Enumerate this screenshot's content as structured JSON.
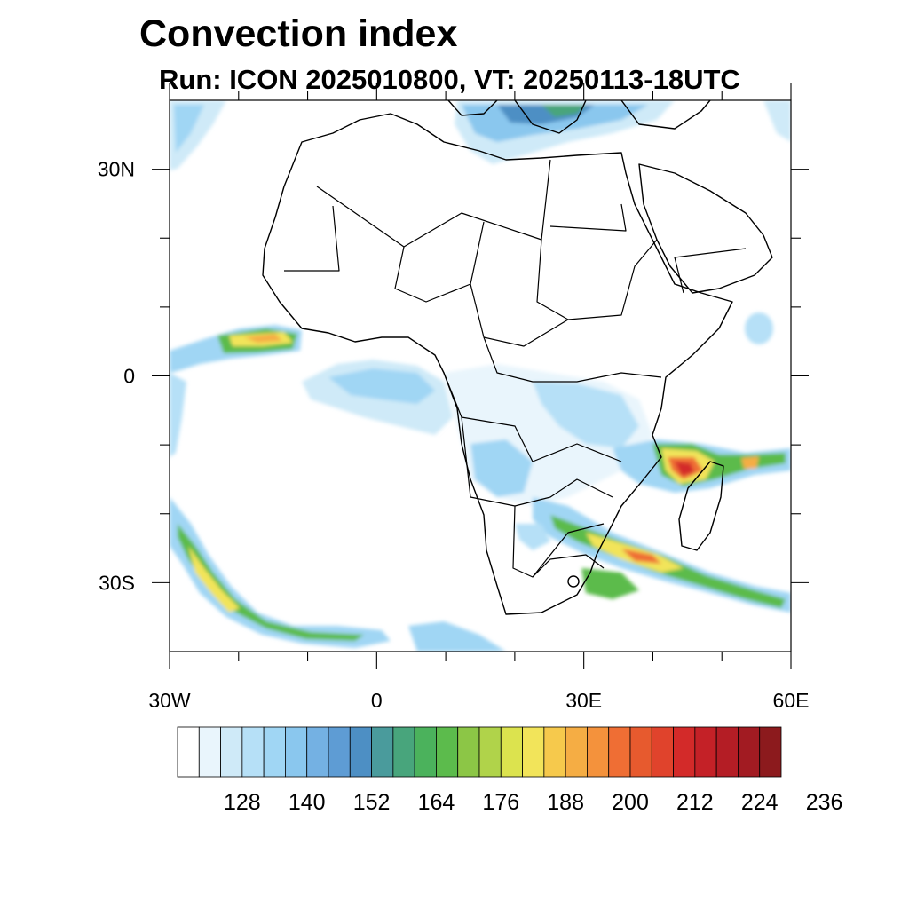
{
  "header": {
    "title": "Convection index",
    "subtitle": "Run: ICON 2025010800,  VT: 20250113-18UTC"
  },
  "axes": {
    "lon_range": [
      -30,
      60
    ],
    "lat_range": [
      -40,
      40
    ],
    "x_ticks": [
      {
        "lon": -30,
        "label": "30W"
      },
      {
        "lon": 0,
        "label": "0"
      },
      {
        "lon": 30,
        "label": "30E"
      },
      {
        "lon": 60,
        "label": "60E"
      }
    ],
    "y_ticks": [
      {
        "lat": 30,
        "label": "30N"
      },
      {
        "lat": 0,
        "label": "0"
      },
      {
        "lat": -30,
        "label": "30S"
      }
    ]
  },
  "colorbar": {
    "labels": [
      "128",
      "140",
      "152",
      "164",
      "176",
      "188",
      "200",
      "212",
      "224",
      "236"
    ],
    "colors": [
      "#ffffff",
      "#e9f5fc",
      "#cfeaf8",
      "#b6e0f7",
      "#a0d6f4",
      "#8ac7ee",
      "#74b1e3",
      "#5e9cd4",
      "#4d8fc4",
      "#4a9b9c",
      "#48a57c",
      "#4bb25c",
      "#5cbb4c",
      "#8cc646",
      "#b0d34a",
      "#dce34e",
      "#f2e45a",
      "#f6c94c",
      "#f5ad44",
      "#f4923c",
      "#ef6e34",
      "#e75a2e",
      "#e0432c",
      "#d32a29",
      "#c42127",
      "#b41d25",
      "#a21b22",
      "#8c1a1d"
    ]
  }
}
